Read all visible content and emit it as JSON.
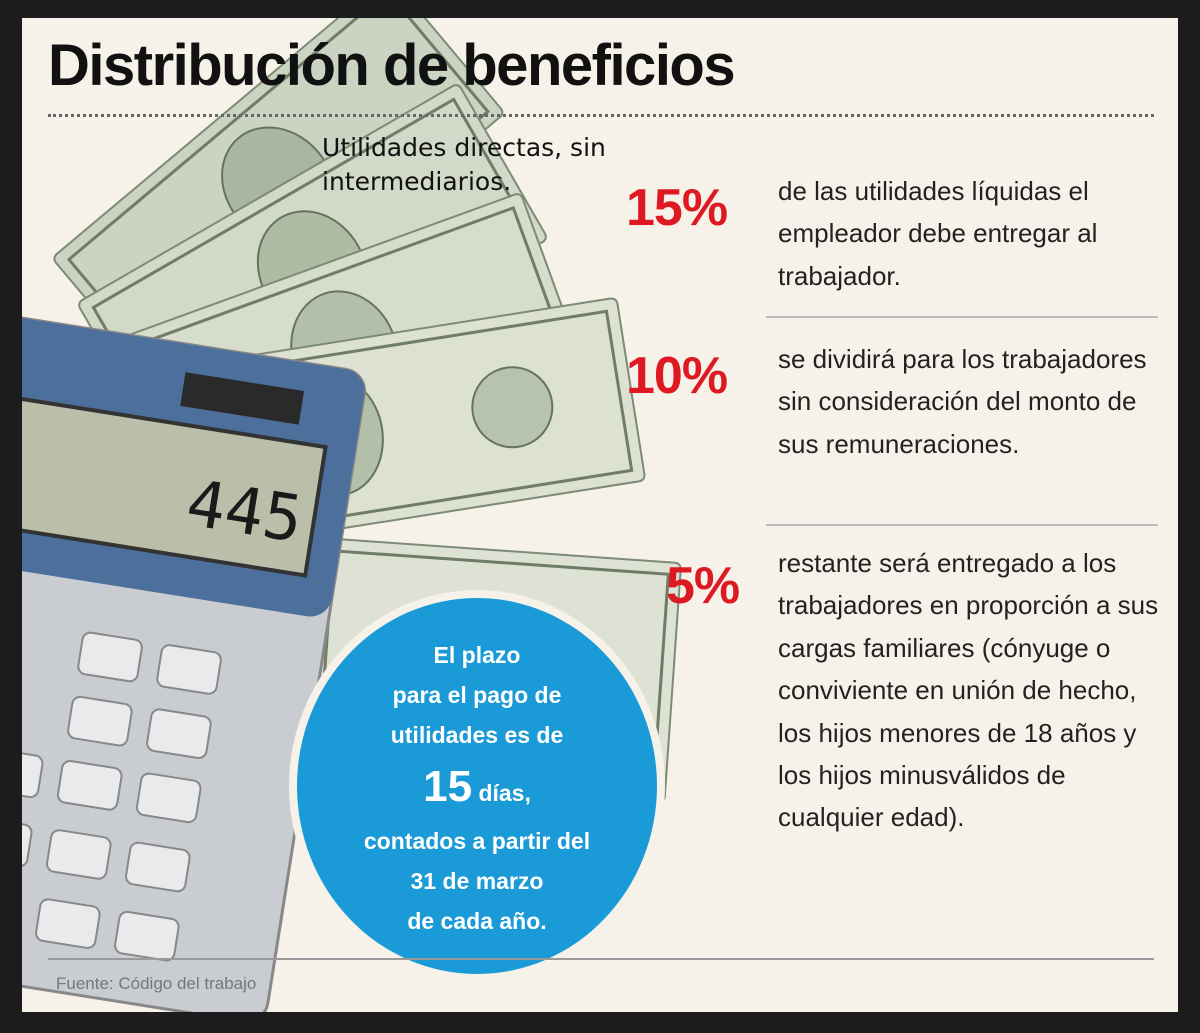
{
  "title": "Distribución de beneficios",
  "subtitle": "Utilidades directas, sin intermediarios.",
  "calculator": {
    "display": "445"
  },
  "items": [
    {
      "percent": "15%",
      "text": "de las utilidades líquidas el empleador debe entregar al trabajador."
    },
    {
      "percent": "10%",
      "text": "se dividirá para los trabajadores sin consideración del monto de sus remuneraciones."
    },
    {
      "percent": "5%",
      "text": "restante será entregado a los trabajadores en proporción a sus cargas familiares (cónyuge o conviviente en unión de hecho, los hijos menores de 18 años y los hijos minusválidos de cualquier edad)."
    }
  ],
  "deadline": {
    "line1": "El plazo",
    "line2": "para el pago de",
    "line3": "utilidades es de",
    "days_number": "15",
    "days_word": "días,",
    "line5": "contados a partir del",
    "line6": "31 de marzo",
    "line7": "de cada año."
  },
  "source": "Fuente: Código del trabajo",
  "colors": {
    "percent_red": "#dd1a22",
    "bubble_blue": "#1a9ad6"
  }
}
